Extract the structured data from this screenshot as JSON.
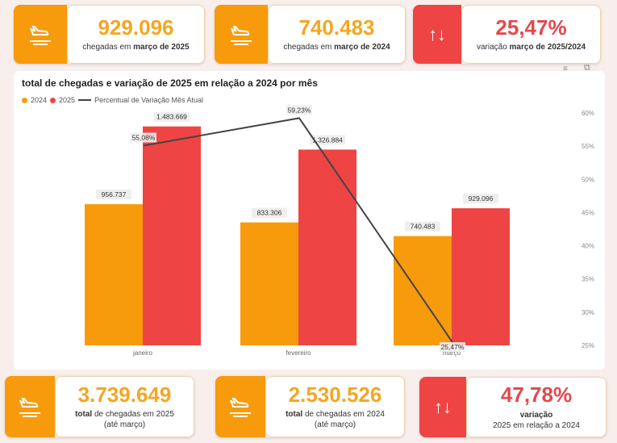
{
  "kpis_top": [
    {
      "value": "929.096",
      "label_pre": "chegadas em ",
      "label_bold": "março de 2025",
      "icon": "plane-landing-icon"
    },
    {
      "value": "740.483",
      "label_pre": "chegadas em ",
      "label_bold": "março de 2024",
      "icon": "plane-landing-icon"
    },
    {
      "value": "25,47%",
      "label_pre": "variação ",
      "label_bold": "março de 2025/2024",
      "icon": "up-down-arrows-icon",
      "arrows": "↑↓"
    }
  ],
  "kpis_bottom": [
    {
      "value": "3.739.649",
      "label_bold": "total",
      "label_rest": " de chegadas em 2025",
      "label2": "(até março)"
    },
    {
      "value": "2.530.526",
      "label_bold": "total",
      "label_rest": " de chegadas em 2024",
      "label2": "(até março)"
    },
    {
      "value": "47,78%",
      "label_bold": "variação",
      "label2": "2025 em relação a 2024",
      "arrows": "↑↓"
    }
  ],
  "colors": {
    "orange": "#f79a0c",
    "red": "#ef4444",
    "line": "#444444"
  },
  "chart_data": {
    "type": "bar",
    "title": "total de chegadas e variação de 2025 em relação a 2024 por mês",
    "categories": [
      "janeiro",
      "fevereiro",
      "março"
    ],
    "series": [
      {
        "name": "2024",
        "values": [
          956737,
          833306,
          740483
        ],
        "labels": [
          "956.737",
          "833.306",
          "740.483"
        ]
      },
      {
        "name": "2025",
        "values": [
          1483669,
          1326884,
          929096
        ],
        "labels": [
          "1.483.669",
          "1.326.884",
          "929.096"
        ]
      }
    ],
    "line": {
      "name": "Percentual de Variação Mês Atual",
      "values": [
        55.08,
        59.23,
        25.47
      ],
      "labels": [
        "55,08%",
        "59,23%",
        "25,47%"
      ]
    },
    "y2_ticks": [
      "60%",
      "55%",
      "50%",
      "45%",
      "40%",
      "35%",
      "30%",
      "25%"
    ],
    "y2_range": [
      25,
      60
    ],
    "y_range": [
      0,
      1575000
    ]
  }
}
